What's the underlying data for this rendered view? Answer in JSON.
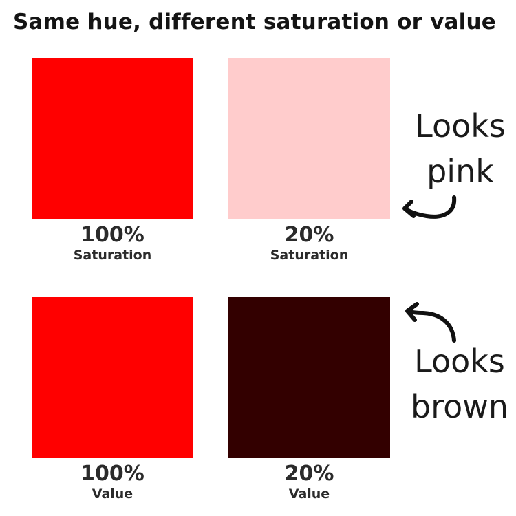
{
  "title": "Same hue, different saturation  or  value",
  "swatches": [
    {
      "percent": "100%",
      "label": "Saturation",
      "color": "#ff0000"
    },
    {
      "percent": "20%",
      "label": "Saturation",
      "color": "#ffcccc"
    },
    {
      "percent": "100%",
      "label": "Value",
      "color": "#ff0000"
    },
    {
      "percent": "20%",
      "label": "Value",
      "color": "#330000"
    }
  ],
  "annotations": [
    {
      "line1": "Looks",
      "line2": "pink",
      "arrow_icon": "curved-arrow-left-icon"
    },
    {
      "line1": "Looks",
      "line2": "brown",
      "arrow_icon": "curved-arrow-up-icon"
    }
  ]
}
